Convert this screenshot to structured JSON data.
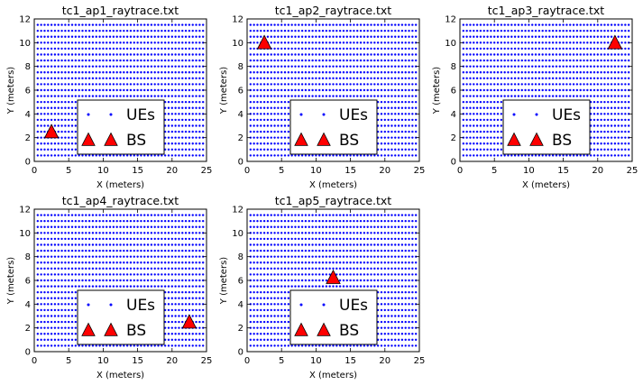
{
  "figure": {
    "background": "#ffffff"
  },
  "chart_data": [
    {
      "type": "scatter",
      "title": "tc1_ap1_raytrace.txt",
      "xlabel": "X (meters)",
      "ylabel": "Y (meters)",
      "xlim": [
        0,
        25
      ],
      "ylim": [
        0,
        12
      ],
      "xticks": [
        0,
        5,
        10,
        15,
        20,
        25
      ],
      "yticks": [
        0,
        2,
        4,
        6,
        8,
        10,
        12
      ],
      "grid": false,
      "legend": {
        "placement": "lower center",
        "entries": [
          "UEs",
          "BS"
        ]
      },
      "series": [
        {
          "name": "UEs",
          "marker": "dot",
          "color": "#0000ff",
          "grid_points": {
            "x_start": 0.5,
            "x_end": 24.5,
            "x_step": 0.5,
            "y_start": 0.5,
            "y_end": 11.5,
            "y_step": 0.5
          }
        },
        {
          "name": "BS",
          "marker": "triangle",
          "color": "#ff0000",
          "points": [
            {
              "x": 2.5,
              "y": 2.5
            }
          ]
        }
      ]
    },
    {
      "type": "scatter",
      "title": "tc1_ap2_raytrace.txt",
      "xlabel": "X (meters)",
      "ylabel": "Y (meters)",
      "xlim": [
        0,
        25
      ],
      "ylim": [
        0,
        12
      ],
      "xticks": [
        0,
        5,
        10,
        15,
        20,
        25
      ],
      "yticks": [
        0,
        2,
        4,
        6,
        8,
        10,
        12
      ],
      "grid": false,
      "legend": {
        "placement": "lower center",
        "entries": [
          "UEs",
          "BS"
        ]
      },
      "series": [
        {
          "name": "UEs",
          "marker": "dot",
          "color": "#0000ff",
          "grid_points": {
            "x_start": 0.5,
            "x_end": 24.5,
            "x_step": 0.5,
            "y_start": 0.5,
            "y_end": 11.5,
            "y_step": 0.5
          }
        },
        {
          "name": "BS",
          "marker": "triangle",
          "color": "#ff0000",
          "points": [
            {
              "x": 2.5,
              "y": 10
            }
          ]
        }
      ]
    },
    {
      "type": "scatter",
      "title": "tc1_ap3_raytrace.txt",
      "xlabel": "X (meters)",
      "ylabel": "Y (meters)",
      "xlim": [
        0,
        25
      ],
      "ylim": [
        0,
        12
      ],
      "xticks": [
        0,
        5,
        10,
        15,
        20,
        25
      ],
      "yticks": [
        0,
        2,
        4,
        6,
        8,
        10,
        12
      ],
      "grid": false,
      "legend": {
        "placement": "lower center",
        "entries": [
          "UEs",
          "BS"
        ]
      },
      "series": [
        {
          "name": "UEs",
          "marker": "dot",
          "color": "#0000ff",
          "grid_points": {
            "x_start": 0.5,
            "x_end": 24.5,
            "x_step": 0.5,
            "y_start": 0.5,
            "y_end": 11.5,
            "y_step": 0.5
          }
        },
        {
          "name": "BS",
          "marker": "triangle",
          "color": "#ff0000",
          "points": [
            {
              "x": 22.5,
              "y": 10
            }
          ]
        }
      ]
    },
    {
      "type": "scatter",
      "title": "tc1_ap4_raytrace.txt",
      "xlabel": "X (meters)",
      "ylabel": "Y (meters)",
      "xlim": [
        0,
        25
      ],
      "ylim": [
        0,
        12
      ],
      "xticks": [
        0,
        5,
        10,
        15,
        20,
        25
      ],
      "yticks": [
        0,
        2,
        4,
        6,
        8,
        10,
        12
      ],
      "grid": false,
      "legend": {
        "placement": "lower center",
        "entries": [
          "UEs",
          "BS"
        ]
      },
      "series": [
        {
          "name": "UEs",
          "marker": "dot",
          "color": "#0000ff",
          "grid_points": {
            "x_start": 0.5,
            "x_end": 24.5,
            "x_step": 0.5,
            "y_start": 0.5,
            "y_end": 11.5,
            "y_step": 0.5
          }
        },
        {
          "name": "BS",
          "marker": "triangle",
          "color": "#ff0000",
          "points": [
            {
              "x": 22.5,
              "y": 2.5
            }
          ]
        }
      ]
    },
    {
      "type": "scatter",
      "title": "tc1_ap5_raytrace.txt",
      "xlabel": "X (meters)",
      "ylabel": "Y (meters)",
      "xlim": [
        0,
        25
      ],
      "ylim": [
        0,
        12
      ],
      "xticks": [
        0,
        5,
        10,
        15,
        20,
        25
      ],
      "yticks": [
        0,
        2,
        4,
        6,
        8,
        10,
        12
      ],
      "grid": false,
      "legend": {
        "placement": "lower center",
        "entries": [
          "UEs",
          "BS"
        ]
      },
      "series": [
        {
          "name": "UEs",
          "marker": "dot",
          "color": "#0000ff",
          "grid_points": {
            "x_start": 0.5,
            "x_end": 24.5,
            "x_step": 0.5,
            "y_start": 0.5,
            "y_end": 11.5,
            "y_step": 0.5
          }
        },
        {
          "name": "BS",
          "marker": "triangle",
          "color": "#ff0000",
          "points": [
            {
              "x": 12.5,
              "y": 6.25
            }
          ]
        }
      ]
    }
  ]
}
